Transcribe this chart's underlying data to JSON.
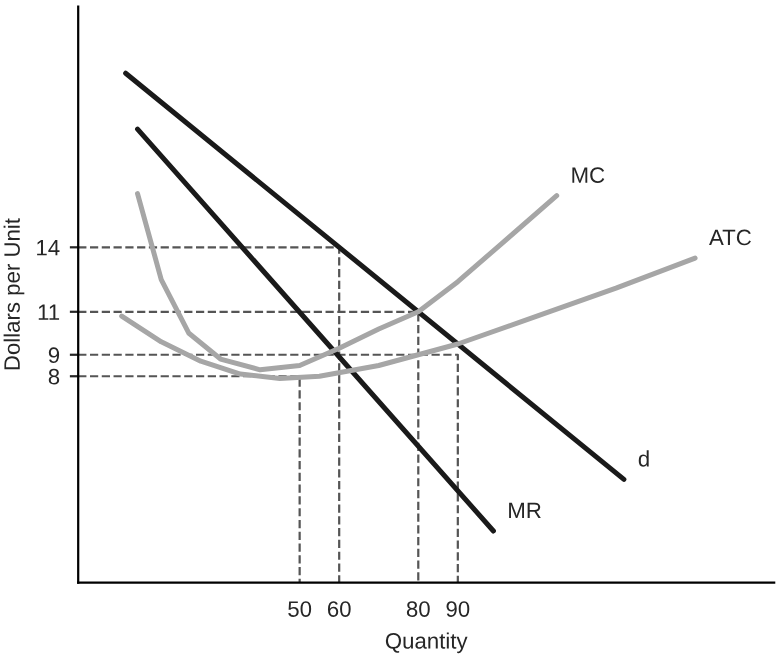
{
  "chart_data": {
    "type": "line",
    "xlabel": "Quantity",
    "ylabel": "Dollars per Unit",
    "xlim": [
      -6,
      170
    ],
    "ylim": [
      -1.6,
      25.2
    ],
    "xticks": [
      50,
      60,
      80,
      90
    ],
    "yticks": [
      8,
      9,
      11,
      14
    ],
    "grid": false,
    "legend": false,
    "marker": "none",
    "series": [
      {
        "name": "d",
        "color": "#1a1a1a",
        "x": [
          6,
          132
        ],
        "values": [
          22.1,
          3.2
        ],
        "line_style": "solid"
      },
      {
        "name": "MR",
        "color": "#1a1a1a",
        "x": [
          9,
          99
        ],
        "values": [
          19.5,
          0.8
        ],
        "line_style": "solid"
      },
      {
        "name": "MC",
        "color": "#a6a6a6",
        "x": [
          9,
          15,
          22,
          30,
          40,
          50,
          60,
          70,
          80,
          90,
          100,
          115
        ],
        "values": [
          16.5,
          12.5,
          10,
          8.8,
          8.3,
          8.5,
          9.3,
          10.2,
          11,
          12.4,
          14,
          16.4
        ],
        "line_style": "solid"
      },
      {
        "name": "ATC",
        "color": "#a6a6a6",
        "x": [
          5,
          15,
          25,
          35,
          45,
          55,
          70,
          90,
          110,
          130,
          150
        ],
        "values": [
          10.8,
          9.6,
          8.7,
          8.1,
          7.9,
          8,
          8.5,
          9.5,
          10.8,
          12.1,
          13.5
        ],
        "line_style": "solid"
      },
      {
        "color": "#555555",
        "x": [
          -6,
          60,
          60
        ],
        "values": [
          14,
          14,
          -1.6
        ],
        "line_style": "dashed"
      },
      {
        "color": "#555555",
        "x": [
          -6,
          80,
          80
        ],
        "values": [
          11,
          11,
          -1.6
        ],
        "line_style": "dashed"
      },
      {
        "color": "#555555",
        "x": [
          -6,
          90,
          90
        ],
        "values": [
          9,
          9,
          -1.6
        ],
        "line_style": "dashed"
      },
      {
        "color": "#555555",
        "x": [
          -6,
          50,
          50
        ],
        "values": [
          8,
          8,
          -1.6
        ],
        "line_style": "dashed"
      }
    ]
  }
}
